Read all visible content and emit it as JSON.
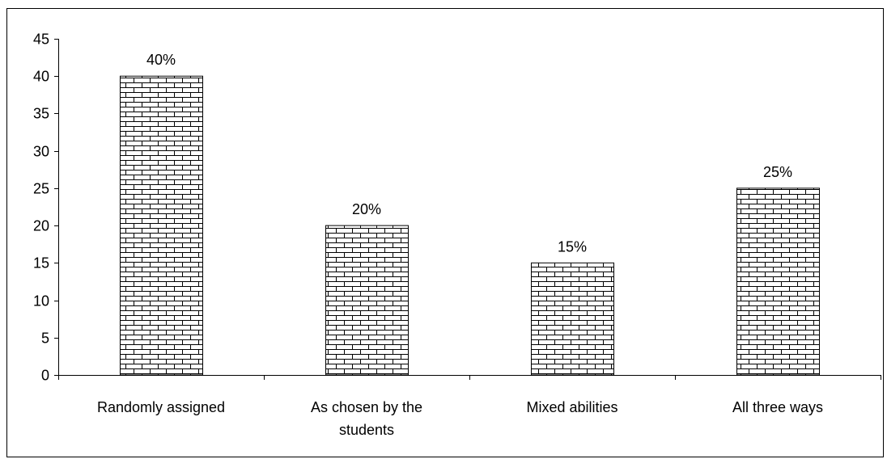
{
  "chart_data": {
    "type": "bar",
    "categories": [
      "Randomly assigned",
      "As chosen by the students",
      "Mixed abilities",
      "All three ways"
    ],
    "category_lines": [
      [
        "Randomly assigned"
      ],
      [
        "As chosen by the",
        "students"
      ],
      [
        "Mixed abilities"
      ],
      [
        "All three ways"
      ]
    ],
    "values": [
      40,
      20,
      15,
      25
    ],
    "data_labels": [
      "40%",
      "20%",
      "15%",
      "25%"
    ],
    "ylim": [
      0,
      45
    ],
    "yticks": [
      0,
      5,
      10,
      15,
      20,
      25,
      30,
      35,
      40,
      45
    ],
    "grid": false,
    "legend": "none",
    "bar_fill": "brick pattern",
    "colors": {
      "bar_pattern_line": "#000000",
      "bar_background": "#ffffff",
      "axis": "#000000"
    }
  }
}
